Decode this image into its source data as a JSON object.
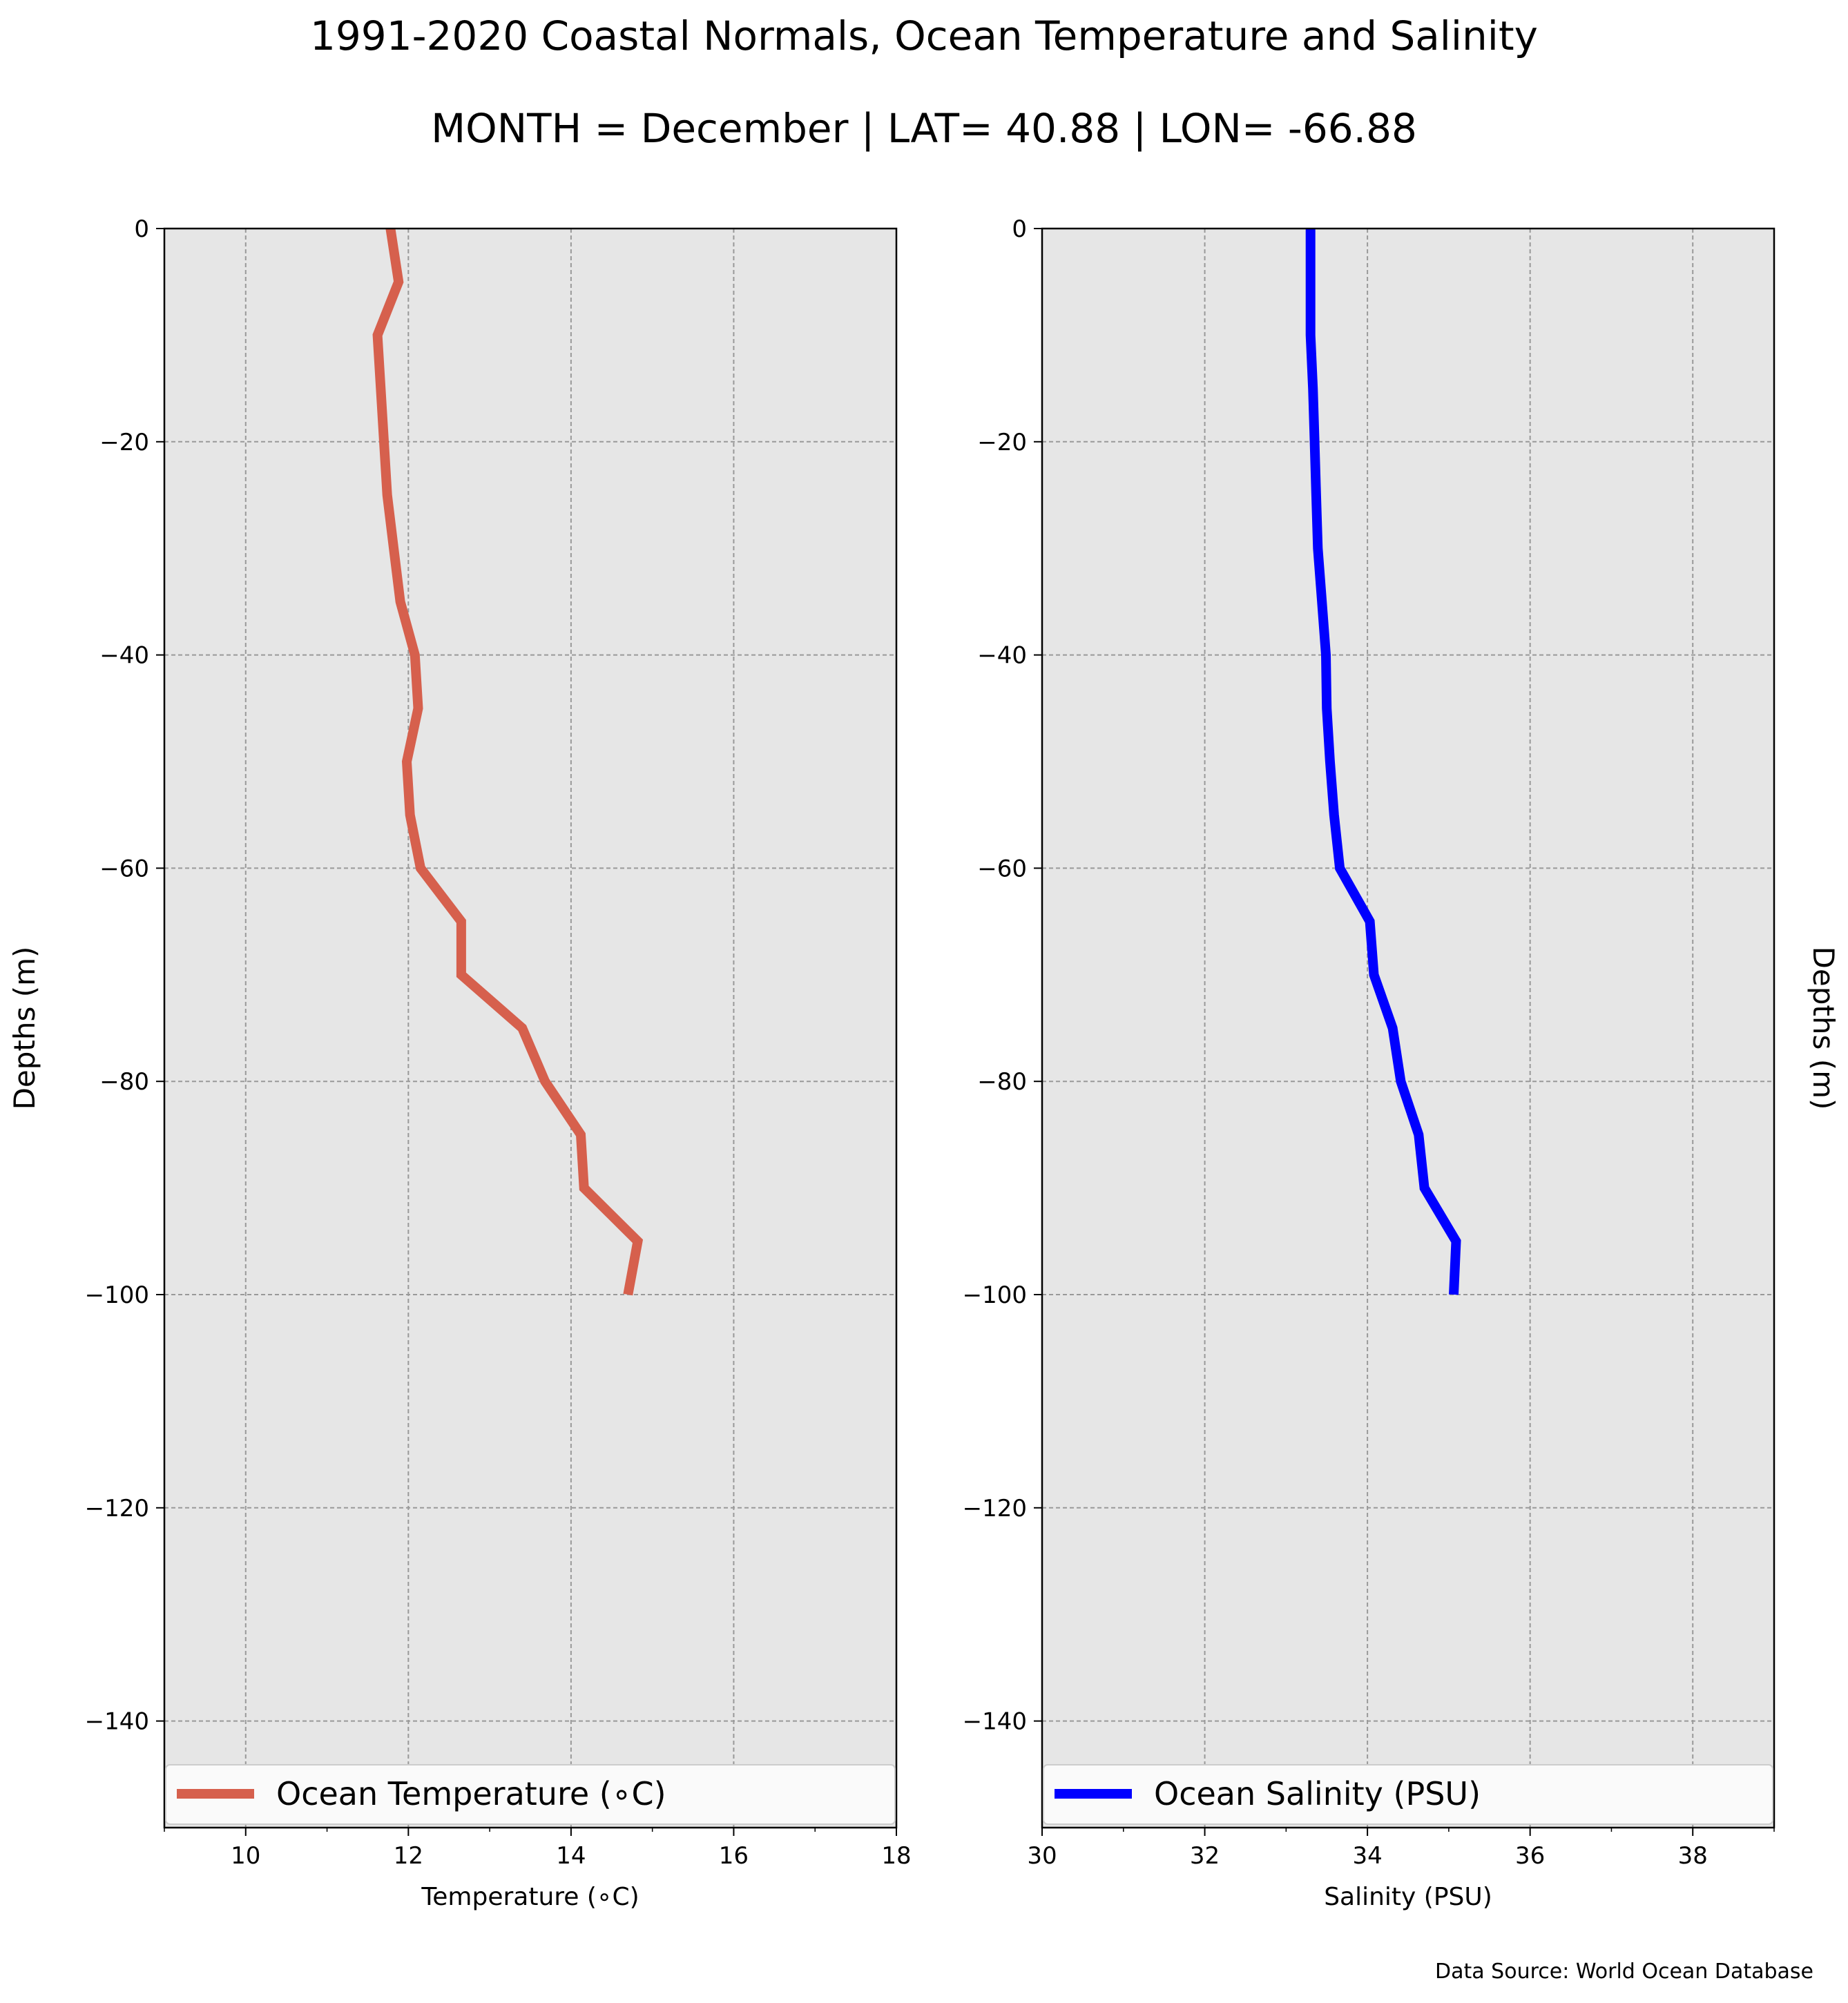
{
  "title": "1991-2020 Coastal Normals, Ocean Temperature and Salinity",
  "subtitle": "MONTH = December | LAT= 40.88 | LON= -66.88",
  "footer": {
    "source": "Data Source: World Ocean Database"
  },
  "colors": {
    "temperature": "#d6604d",
    "salinity": "#0000ff",
    "plot_bg": "#e6e6e6",
    "grid": "#999999"
  },
  "chart_data": [
    {
      "type": "line",
      "xlabel": "Temperature (∘C)",
      "ylabel": "Depths (m)",
      "xlim": [
        9,
        18
      ],
      "ylim": [
        -150,
        0
      ],
      "xticks": [
        10,
        12,
        14,
        16,
        18
      ],
      "xtick_labels": [
        "10",
        "12",
        "14",
        "16",
        "18"
      ],
      "yticks": [
        0,
        -20,
        -40,
        -60,
        -80,
        -100,
        -120,
        -140
      ],
      "ytick_labels": [
        "0",
        "−20",
        "−40",
        "−60",
        "−80",
        "−100",
        "−120",
        "−140"
      ],
      "grid": true,
      "legend": "bottom",
      "series": [
        {
          "name": "Ocean Temperature (∘C)",
          "color": "#d6604d",
          "depth": [
            0,
            -5,
            -10,
            -15,
            -20,
            -25,
            -30,
            -35,
            -40,
            -45,
            -50,
            -55,
            -60,
            -65,
            -70,
            -75,
            -80,
            -85,
            -90,
            -95,
            -100
          ],
          "value": [
            11.78,
            11.88,
            11.62,
            11.66,
            11.7,
            11.74,
            11.82,
            11.9,
            12.08,
            12.12,
            11.98,
            12.02,
            12.15,
            12.65,
            12.65,
            13.4,
            13.68,
            14.12,
            14.16,
            14.82,
            14.7
          ]
        }
      ]
    },
    {
      "type": "line",
      "xlabel": "Salinity (PSU)",
      "ylabel": "Depths (m)",
      "xlim": [
        30,
        39
      ],
      "ylim": [
        -150,
        0
      ],
      "xticks": [
        30,
        32,
        34,
        36,
        38
      ],
      "xtick_labels": [
        "30",
        "32",
        "34",
        "36",
        "38"
      ],
      "yticks": [
        0,
        -20,
        -40,
        -60,
        -80,
        -100,
        -120,
        -140
      ],
      "ytick_labels": [
        "0",
        "−20",
        "−40",
        "−60",
        "−80",
        "−100",
        "−120",
        "−140"
      ],
      "grid": true,
      "legend": "bottom",
      "series": [
        {
          "name": "Ocean Salinity (PSU)",
          "color": "#0000ff",
          "depth": [
            0,
            -5,
            -10,
            -15,
            -20,
            -25,
            -30,
            -35,
            -40,
            -45,
            -50,
            -55,
            -60,
            -65,
            -70,
            -75,
            -80,
            -85,
            -90,
            -95,
            -100
          ],
          "value": [
            33.3,
            33.3,
            33.3,
            33.33,
            33.35,
            33.37,
            33.39,
            33.44,
            33.49,
            33.5,
            33.54,
            33.59,
            33.66,
            34.03,
            34.08,
            34.31,
            34.41,
            34.63,
            34.7,
            35.09,
            35.06
          ]
        }
      ]
    }
  ]
}
